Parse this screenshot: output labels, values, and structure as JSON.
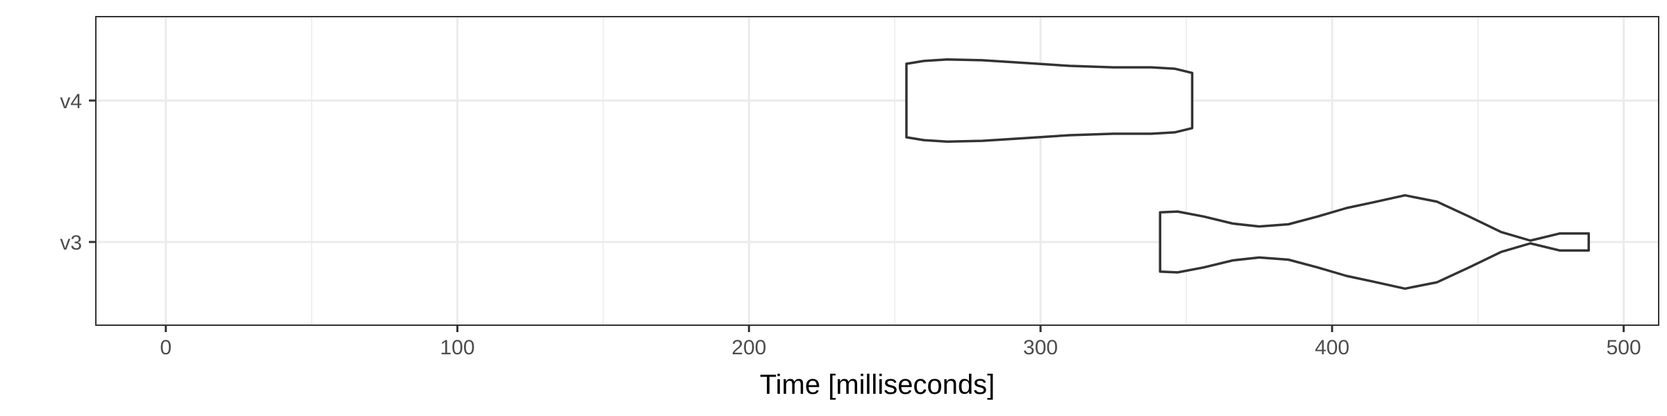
{
  "chart_data": {
    "type": "violin",
    "title": "",
    "xlabel": "Time [milliseconds]",
    "ylabel": "",
    "xlim": [
      -24,
      512
    ],
    "x_ticks": [
      0,
      100,
      200,
      300,
      400,
      500
    ],
    "x_tick_labels": [
      "0",
      "100",
      "200",
      "300",
      "400",
      "500"
    ],
    "x_minor_ticks": [
      50,
      150,
      250,
      350,
      450
    ],
    "categories": [
      "v3",
      "v4"
    ],
    "grid": true,
    "legend": "none",
    "colors": {
      "outline": "#333333",
      "fill": "#ffffff",
      "grid": "#ebebeb"
    },
    "series": [
      {
        "category": "v4",
        "range": [
          254,
          352
        ],
        "density": [
          [
            254,
            0.52
          ],
          [
            260,
            0.56
          ],
          [
            268,
            0.58
          ],
          [
            280,
            0.57
          ],
          [
            295,
            0.53
          ],
          [
            310,
            0.49
          ],
          [
            325,
            0.47
          ],
          [
            338,
            0.47
          ],
          [
            346,
            0.45
          ],
          [
            352,
            0.39
          ]
        ]
      },
      {
        "category": "v3",
        "range": [
          341,
          488
        ],
        "density": [
          [
            341,
            0.42
          ],
          [
            347,
            0.43
          ],
          [
            356,
            0.36
          ],
          [
            366,
            0.26
          ],
          [
            375,
            0.22
          ],
          [
            385,
            0.25
          ],
          [
            395,
            0.36
          ],
          [
            405,
            0.48
          ],
          [
            414,
            0.56
          ],
          [
            425,
            0.66
          ],
          [
            436,
            0.57
          ],
          [
            447,
            0.36
          ],
          [
            458,
            0.14
          ],
          [
            468,
            0.02
          ],
          [
            478,
            0.12
          ],
          [
            488,
            0.12
          ]
        ]
      }
    ]
  }
}
